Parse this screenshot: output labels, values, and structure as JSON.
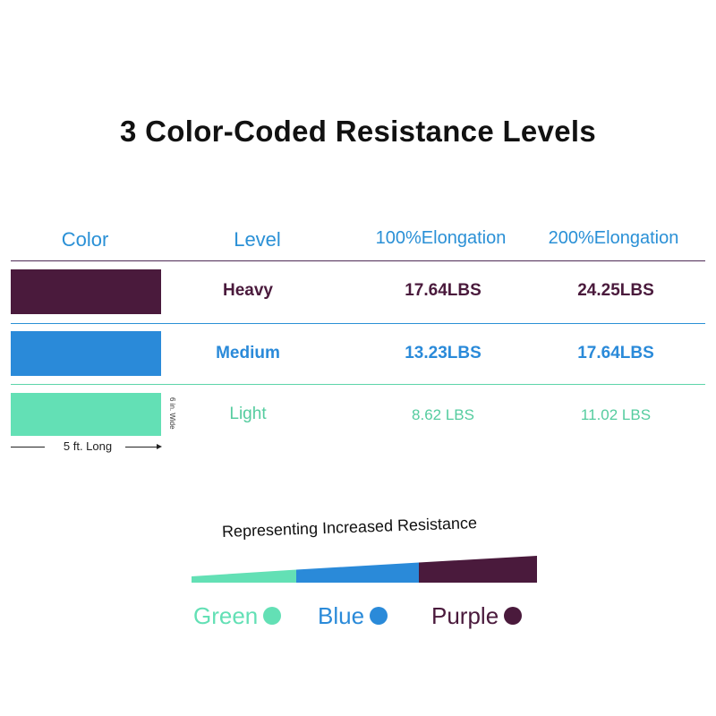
{
  "title": "3 Color-Coded Resistance Levels",
  "colors": {
    "heavy": "#4a1a3c",
    "medium": "#2a8ad9",
    "light": "#63e0b5",
    "header": "#2a90d6"
  },
  "table": {
    "headers": {
      "color": "Color",
      "level": "Level",
      "elong100": "100%Elongation",
      "elong200": "200%Elongation"
    },
    "rows": [
      {
        "level": "Heavy",
        "elong100": "17.64LBS",
        "elong200": "24.25LBS"
      },
      {
        "level": "Medium",
        "elong100": "13.23LBS",
        "elong200": "17.64LBS"
      },
      {
        "level": "Light",
        "elong100": "8.62 LBS",
        "elong200": "11.02 LBS"
      }
    ]
  },
  "dimensions": {
    "width_label": "6 in. Wide",
    "length_label": "5 ft. Long"
  },
  "resistance": {
    "title": "Representing Increased Resistance",
    "legend": [
      {
        "label": "Green",
        "color": "#63e0b5"
      },
      {
        "label": "Blue",
        "color": "#2a8ad9"
      },
      {
        "label": "Purple",
        "color": "#4a1a3c"
      }
    ]
  }
}
